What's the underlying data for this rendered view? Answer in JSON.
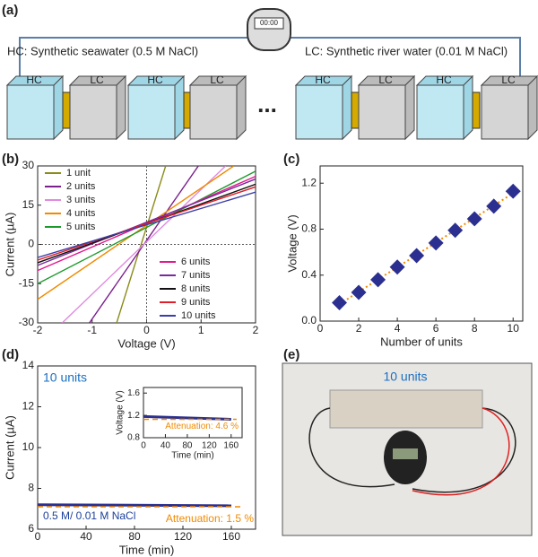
{
  "panels": {
    "a": "(a)",
    "b": "(b)",
    "c": "(c)",
    "d": "(d)",
    "e": "(e)"
  },
  "diagram": {
    "hc_text": "HC: Synthetic seawater (0.5 M NaCl)",
    "lc_text": "LC: Synthetic river water (0.01 M NaCl)",
    "boxes": [
      "HC",
      "LC",
      "HC",
      "LC",
      "HC",
      "LC",
      "HC",
      "LC"
    ],
    "ellipsis": "...",
    "timer": "00:00"
  },
  "photo": {
    "label": "10 units"
  },
  "chart_data": [
    {
      "type": "line",
      "xlabel": "Voltage (V)",
      "ylabel": "Current (µA)",
      "xlim": [
        -2,
        2
      ],
      "ylim": [
        -30,
        30
      ],
      "xticks": [
        -2,
        -1,
        0,
        1,
        2
      ],
      "yticks": [
        -30,
        -15,
        0,
        15,
        30
      ],
      "zero_lines": true,
      "series": [
        {
          "name": "1 unit",
          "color": "#8b8b1a",
          "x": [
            -0.55,
            0.35
          ],
          "values": [
            -30,
            30
          ]
        },
        {
          "name": "2 units",
          "color": "#7b1f8c",
          "x": [
            -1.05,
            0.95
          ],
          "values": [
            -30,
            30
          ]
        },
        {
          "name": "3 units",
          "color": "#e08adf",
          "x": [
            -1.55,
            1.45
          ],
          "values": [
            -30,
            30
          ]
        },
        {
          "name": "4 units",
          "color": "#f08a00",
          "x": [
            -2,
            1.6
          ],
          "values": [
            -21,
            30
          ]
        },
        {
          "name": "5 units",
          "color": "#1c9a2c",
          "x": [
            -2,
            2
          ],
          "values": [
            -15,
            28
          ]
        },
        {
          "name": "6 units",
          "color": "#e0198c",
          "x": [
            -2,
            2
          ],
          "values": [
            -10,
            26
          ]
        },
        {
          "name": "7 units",
          "color": "#7a2aa0",
          "x": [
            -2,
            2
          ],
          "values": [
            -8,
            25
          ]
        },
        {
          "name": "8 units",
          "color": "#111111",
          "x": [
            -2,
            2
          ],
          "values": [
            -7,
            23
          ]
        },
        {
          "name": "9 units",
          "color": "#e01f2a",
          "x": [
            -2,
            2
          ],
          "values": [
            -6,
            22
          ]
        },
        {
          "name": "10 units",
          "color": "#3b3fa8",
          "x": [
            -2,
            2
          ],
          "values": [
            -5,
            20
          ]
        }
      ]
    },
    {
      "type": "scatter",
      "xlabel": "Number of units",
      "ylabel": "Voltage (V)",
      "xlim": [
        0,
        10.5
      ],
      "ylim": [
        0,
        1.35
      ],
      "xticks": [
        0,
        2,
        4,
        6,
        8,
        10
      ],
      "yticks": [
        {
          "value": 0,
          "label": "0.0"
        },
        0.4,
        0.8,
        1.2
      ],
      "fit_color": "#f08a00",
      "series": [
        {
          "color": "#2b2f8f",
          "x": [
            1,
            2,
            3,
            4,
            5,
            6,
            7,
            8,
            9,
            10
          ],
          "values": [
            0.16,
            0.25,
            0.36,
            0.47,
            0.57,
            0.68,
            0.79,
            0.89,
            1.0,
            1.13
          ]
        }
      ]
    },
    {
      "type": "line",
      "xlabel": "Time (min)",
      "ylabel": "Current (µA)",
      "xlim": [
        0,
        180
      ],
      "ylim": [
        6,
        14
      ],
      "xticks": [
        0,
        40,
        80,
        120,
        160
      ],
      "yticks": [
        6,
        8,
        10,
        12,
        14
      ],
      "annotations": [
        "10 units",
        "Attenuation: 1.5 %",
        "0.5 M/ 0.01 M NaCl"
      ],
      "series": [
        {
          "color": "#2b2f8f",
          "x": [
            0,
            160
          ],
          "values": [
            7.2,
            7.15
          ]
        },
        {
          "color": "#f08a00",
          "dashed": true,
          "x": [
            0,
            170
          ],
          "values": [
            7.1,
            7.1
          ]
        }
      ]
    },
    {
      "type": "line",
      "xlabel": "Time (min)",
      "ylabel": "Voltage (V)",
      "xlim": [
        0,
        180
      ],
      "ylim": [
        0.8,
        1.7
      ],
      "xticks": [
        0,
        40,
        80,
        120,
        160
      ],
      "yticks": [
        0.8,
        1.2,
        1.6
      ],
      "annotations": [
        "Attenuation: 4.6 %"
      ],
      "series": [
        {
          "color": "#2b2f8f",
          "x": [
            0,
            160
          ],
          "values": [
            1.18,
            1.13
          ]
        },
        {
          "color": "#f08a00",
          "dashed": true,
          "x": [
            0,
            170
          ],
          "values": [
            1.13,
            1.13
          ]
        }
      ]
    }
  ]
}
